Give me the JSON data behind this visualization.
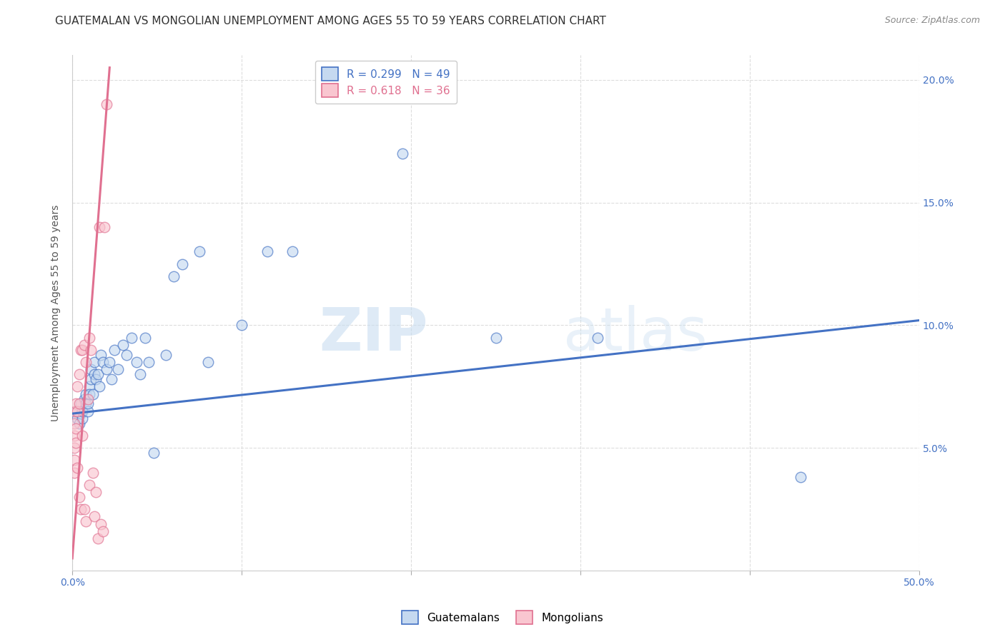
{
  "title": "GUATEMALAN VS MONGOLIAN UNEMPLOYMENT AMONG AGES 55 TO 59 YEARS CORRELATION CHART",
  "source": "Source: ZipAtlas.com",
  "ylabel": "Unemployment Among Ages 55 to 59 years",
  "xlim": [
    0,
    0.5
  ],
  "ylim": [
    0,
    0.21
  ],
  "xticks": [
    0.0,
    0.1,
    0.2,
    0.3,
    0.4,
    0.5
  ],
  "xticklabels": [
    "0.0%",
    "",
    "",
    "",
    "",
    "50.0%"
  ],
  "yticks": [
    0.0,
    0.05,
    0.1,
    0.15,
    0.2
  ],
  "yticklabels_right": [
    "",
    "5.0%",
    "10.0%",
    "15.0%",
    "20.0%"
  ],
  "watermark_zip": "ZIP",
  "watermark_atlas": "atlas",
  "blue_R": 0.299,
  "blue_N": 49,
  "pink_R": 0.618,
  "pink_N": 36,
  "blue_fill_color": "#c5d9f0",
  "pink_fill_color": "#f9c6d0",
  "blue_edge_color": "#4472c4",
  "pink_edge_color": "#e07090",
  "legend_label_blue": "Guatemalans",
  "legend_label_pink": "Mongolians",
  "blue_scatter_x": [
    0.002,
    0.003,
    0.004,
    0.005,
    0.005,
    0.006,
    0.006,
    0.007,
    0.008,
    0.008,
    0.009,
    0.009,
    0.01,
    0.01,
    0.011,
    0.011,
    0.012,
    0.013,
    0.013,
    0.014,
    0.015,
    0.016,
    0.017,
    0.018,
    0.02,
    0.022,
    0.023,
    0.025,
    0.027,
    0.03,
    0.032,
    0.035,
    0.038,
    0.04,
    0.043,
    0.045,
    0.048,
    0.055,
    0.06,
    0.065,
    0.075,
    0.08,
    0.1,
    0.115,
    0.13,
    0.195,
    0.25,
    0.31,
    0.43
  ],
  "blue_scatter_y": [
    0.065,
    0.062,
    0.06,
    0.068,
    0.064,
    0.062,
    0.065,
    0.07,
    0.068,
    0.072,
    0.065,
    0.068,
    0.075,
    0.072,
    0.082,
    0.078,
    0.072,
    0.08,
    0.085,
    0.078,
    0.08,
    0.075,
    0.088,
    0.085,
    0.082,
    0.085,
    0.078,
    0.09,
    0.082,
    0.092,
    0.088,
    0.095,
    0.085,
    0.08,
    0.095,
    0.085,
    0.048,
    0.088,
    0.12,
    0.125,
    0.13,
    0.085,
    0.1,
    0.13,
    0.13,
    0.17,
    0.095,
    0.095,
    0.038
  ],
  "pink_scatter_x": [
    0.001,
    0.001,
    0.001,
    0.001,
    0.001,
    0.001,
    0.002,
    0.002,
    0.002,
    0.003,
    0.003,
    0.003,
    0.004,
    0.004,
    0.004,
    0.005,
    0.005,
    0.006,
    0.006,
    0.007,
    0.007,
    0.008,
    0.008,
    0.009,
    0.01,
    0.01,
    0.011,
    0.012,
    0.013,
    0.014,
    0.015,
    0.016,
    0.017,
    0.018,
    0.019,
    0.02
  ],
  "pink_scatter_y": [
    0.065,
    0.06,
    0.055,
    0.05,
    0.045,
    0.04,
    0.068,
    0.058,
    0.052,
    0.075,
    0.065,
    0.042,
    0.08,
    0.068,
    0.03,
    0.09,
    0.025,
    0.09,
    0.055,
    0.092,
    0.025,
    0.085,
    0.02,
    0.07,
    0.095,
    0.035,
    0.09,
    0.04,
    0.022,
    0.032,
    0.013,
    0.14,
    0.019,
    0.016,
    0.14,
    0.19
  ],
  "blue_line_x": [
    0.0,
    0.5
  ],
  "blue_line_y": [
    0.064,
    0.102
  ],
  "pink_line_x": [
    0.0,
    0.022
  ],
  "pink_line_y": [
    0.005,
    0.205
  ],
  "title_fontsize": 11,
  "source_fontsize": 9,
  "axis_label_fontsize": 10,
  "tick_fontsize": 10,
  "scatter_size": 110,
  "scatter_alpha": 0.65,
  "scatter_linewidth": 1.0,
  "background_color": "#ffffff",
  "grid_color": "#dddddd",
  "tick_color": "#4472c4"
}
